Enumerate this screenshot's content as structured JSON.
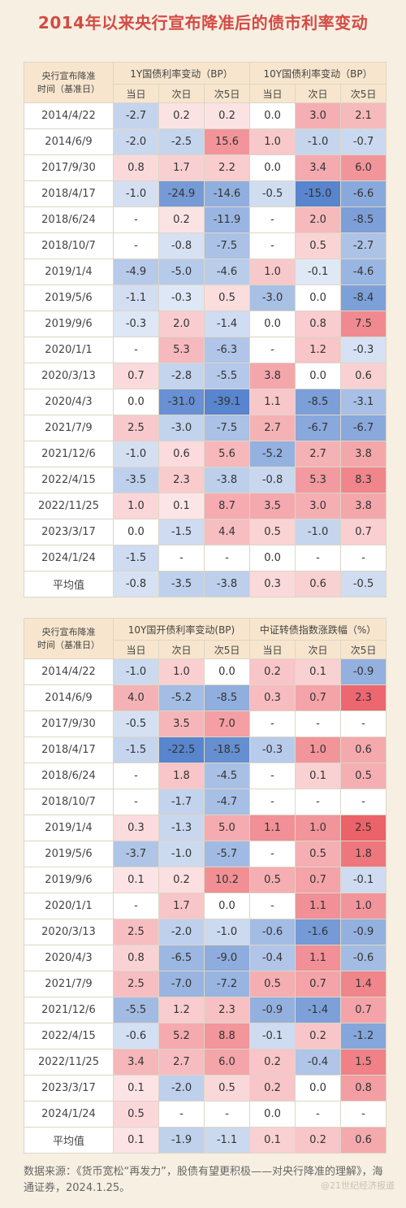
{
  "title": "2014年以来央行宣布降准后的债市利率变动",
  "table1": {
    "corner_line1": "央行宣布降准",
    "corner_line2": "时间（基准日）",
    "group1": "1Y国债利率变动（BP）",
    "group2": "10Y国债利率变动（BP）",
    "subheaders": [
      "当日",
      "次日",
      "次5日",
      "当日",
      "次日",
      "次5日"
    ],
    "rows": [
      {
        "date": "2014/4/22",
        "v": [
          "-2.7",
          "0.2",
          "0.2",
          "0.0",
          "3.0",
          "2.1"
        ]
      },
      {
        "date": "2014/6/9",
        "v": [
          "-2.0",
          "-2.5",
          "15.6",
          "1.0",
          "-1.0",
          "-0.7"
        ]
      },
      {
        "date": "2017/9/30",
        "v": [
          "0.8",
          "1.7",
          "2.2",
          "0.0",
          "3.4",
          "6.0"
        ]
      },
      {
        "date": "2018/4/17",
        "v": [
          "-1.0",
          "-24.9",
          "-14.6",
          "-0.5",
          "-15.0",
          "-6.6"
        ]
      },
      {
        "date": "2018/6/24",
        "v": [
          "-",
          "0.2",
          "-11.9",
          "-",
          "2.0",
          "-8.5"
        ]
      },
      {
        "date": "2018/10/7",
        "v": [
          "-",
          "-0.8",
          "-7.5",
          "-",
          "0.5",
          "-2.7"
        ]
      },
      {
        "date": "2019/1/4",
        "v": [
          "-4.9",
          "-5.0",
          "-4.6",
          "1.0",
          "-0.1",
          "-4.6"
        ]
      },
      {
        "date": "2019/5/6",
        "v": [
          "-1.1",
          "-0.3",
          "0.5",
          "-3.0",
          "0.0",
          "-8.4"
        ]
      },
      {
        "date": "2019/9/6",
        "v": [
          "-0.3",
          "2.0",
          "-1.4",
          "0.0",
          "0.8",
          "7.5"
        ]
      },
      {
        "date": "2020/1/1",
        "v": [
          "-",
          "5.3",
          "-6.3",
          "-",
          "1.2",
          "-0.3"
        ]
      },
      {
        "date": "2020/3/13",
        "v": [
          "0.7",
          "-2.8",
          "-5.5",
          "3.8",
          "0.0",
          "0.6"
        ]
      },
      {
        "date": "2020/4/3",
        "v": [
          "0.0",
          "-31.0",
          "-39.1",
          "1.1",
          "-8.5",
          "-3.1"
        ]
      },
      {
        "date": "2021/7/9",
        "v": [
          "2.5",
          "-3.0",
          "-7.5",
          "2.7",
          "-6.7",
          "-6.7"
        ]
      },
      {
        "date": "2021/12/6",
        "v": [
          "-1.0",
          "0.6",
          "5.6",
          "-5.2",
          "2.7",
          "3.8"
        ]
      },
      {
        "date": "2022/4/15",
        "v": [
          "-3.5",
          "2.3",
          "-3.8",
          "-0.8",
          "5.3",
          "8.3"
        ]
      },
      {
        "date": "2022/11/25",
        "v": [
          "1.0",
          "0.1",
          "8.7",
          "3.5",
          "3.0",
          "3.8"
        ]
      },
      {
        "date": "2023/3/17",
        "v": [
          "0.0",
          "-1.5",
          "4.4",
          "0.5",
          "-1.0",
          "0.7"
        ]
      },
      {
        "date": "2024/1/24",
        "v": [
          "-1.5",
          "-",
          "-",
          "0.0",
          "-",
          "-"
        ]
      },
      {
        "date": "平均值",
        "v": [
          "-0.8",
          "-3.5",
          "-3.8",
          "0.3",
          "0.6",
          "-0.5"
        ]
      }
    ]
  },
  "table2": {
    "corner_line1": "央行宣布降准",
    "corner_line2": "时间（基准日）",
    "group1": "10Y国开债利率变动(BP)",
    "group2": "中证转债指数涨跌幅（%）",
    "subheaders": [
      "当日",
      "次日",
      "次5日",
      "当日",
      "次日",
      "次5日"
    ],
    "rows": [
      {
        "date": "2014/4/22",
        "v": [
          "-1.0",
          "1.0",
          "0.0",
          "0.2",
          "0.1",
          "-0.9"
        ]
      },
      {
        "date": "2014/6/9",
        "v": [
          "4.0",
          "-5.2",
          "-8.5",
          "0.3",
          "0.7",
          "2.3"
        ]
      },
      {
        "date": "2017/9/30",
        "v": [
          "-0.5",
          "3.5",
          "7.0",
          "-",
          "-",
          "-"
        ]
      },
      {
        "date": "2018/4/17",
        "v": [
          "-1.5",
          "-22.5",
          "-18.5",
          "-0.3",
          "1.0",
          "0.6"
        ]
      },
      {
        "date": "2018/6/24",
        "v": [
          "-",
          "1.8",
          "-4.5",
          "-",
          "0.1",
          "0.5"
        ]
      },
      {
        "date": "2018/10/7",
        "v": [
          "-",
          "-1.7",
          "-4.7",
          "-",
          "-",
          "-"
        ]
      },
      {
        "date": "2019/1/4",
        "v": [
          "0.3",
          "-1.3",
          "5.0",
          "1.1",
          "1.0",
          "2.5"
        ]
      },
      {
        "date": "2019/5/6",
        "v": [
          "-3.7",
          "-1.0",
          "-5.7",
          "-",
          "0.5",
          "1.8"
        ]
      },
      {
        "date": "2019/9/6",
        "v": [
          "0.1",
          "0.2",
          "10.2",
          "0.5",
          "0.7",
          "-0.1"
        ]
      },
      {
        "date": "2020/1/1",
        "v": [
          "-",
          "1.7",
          "0.0",
          "-",
          "1.1",
          "1.0"
        ]
      },
      {
        "date": "2020/3/13",
        "v": [
          "2.5",
          "-2.0",
          "-1.0",
          "-0.6",
          "-1.6",
          "-0.9"
        ]
      },
      {
        "date": "2020/4/3",
        "v": [
          "0.8",
          "-6.5",
          "-9.0",
          "-0.4",
          "1.1",
          "-0.6"
        ]
      },
      {
        "date": "2021/7/9",
        "v": [
          "2.5",
          "-7.0",
          "-7.2",
          "0.5",
          "0.7",
          "1.4"
        ]
      },
      {
        "date": "2021/12/6",
        "v": [
          "-5.5",
          "1.2",
          "2.3",
          "-0.9",
          "-1.4",
          "0.7"
        ]
      },
      {
        "date": "2022/4/15",
        "v": [
          "-0.6",
          "5.2",
          "8.8",
          "-0.1",
          "0.2",
          "-1.2"
        ]
      },
      {
        "date": "2022/11/25",
        "v": [
          "3.4",
          "2.7",
          "6.0",
          "0.2",
          "-0.4",
          "1.5"
        ]
      },
      {
        "date": "2023/3/17",
        "v": [
          "0.1",
          "-2.0",
          "0.5",
          "0.2",
          "0.0",
          "0.8"
        ]
      },
      {
        "date": "2024/1/24",
        "v": [
          "0.5",
          "-",
          "-",
          "0.0",
          "-",
          "-"
        ]
      },
      {
        "date": "平均值",
        "v": [
          "0.1",
          "-1.9",
          "-1.1",
          "0.1",
          "0.2",
          "0.6"
        ]
      }
    ]
  },
  "source": "数据来源：《货币宽松“再发力”，股债有望更积极——对央行降准的理解》，海通证券，2024.1.25。",
  "watermark": "@21世纪经济报道",
  "colors": {
    "positive": "#e8464f",
    "negative": "#3a6fc4"
  }
}
